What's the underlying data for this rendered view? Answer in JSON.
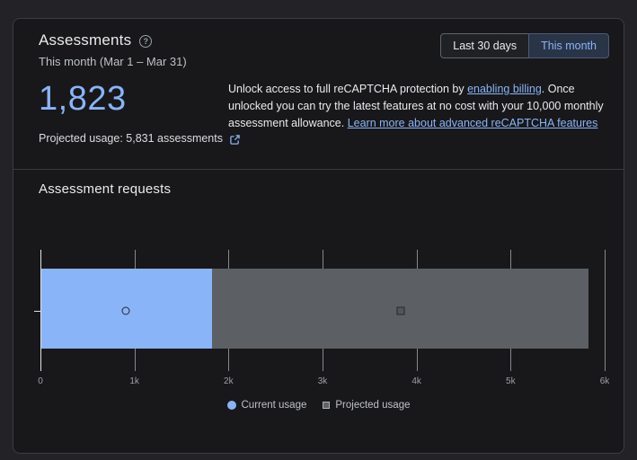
{
  "header": {
    "title": "Assessments",
    "subtitle": "This month (Mar 1 – Mar 31)",
    "range_buttons": [
      {
        "label": "Last 30 days",
        "selected": false
      },
      {
        "label": "This month",
        "selected": true
      }
    ]
  },
  "icons": {
    "help_glyph": "?"
  },
  "stats": {
    "current_value": "1,823",
    "projected_label": "Projected usage: 5,831 assessments"
  },
  "unlock_notice": {
    "text_before_link1": "Unlock access to full reCAPTCHA protection by ",
    "link1": "enabling billing",
    "text_between": ". Once unlocked you can try the latest features at no cost with your 10,000 monthly assessment allowance. ",
    "link2": "Learn more about advanced reCAPTCHA features"
  },
  "section": {
    "title": "Assessment requests"
  },
  "legend": [
    {
      "label": "Current usage",
      "marker": "circle",
      "color": "#8ab4f8"
    },
    {
      "label": "Projected usage",
      "marker": "square",
      "color": "#5f6368"
    }
  ],
  "colors": {
    "accent_blue": "#8ab4f8",
    "bar_current": "#8ab4f8",
    "bar_projected": "#5c6065",
    "card_background": "#18181a",
    "page_background": "#232327"
  },
  "chart_data": {
    "type": "bar",
    "orientation": "horizontal",
    "title": "Assessment requests",
    "series": [
      {
        "name": "Current usage",
        "value": 1823
      },
      {
        "name": "Projected usage",
        "value": 5831
      }
    ],
    "xlim": [
      0,
      6000
    ],
    "tick_values": [
      0,
      1000,
      2000,
      3000,
      4000,
      5000,
      6000
    ],
    "tick_labels": [
      "0",
      "1k",
      "2k",
      "3k",
      "4k",
      "5k",
      "6k"
    ],
    "legend_position": "bottom",
    "grid": true
  }
}
